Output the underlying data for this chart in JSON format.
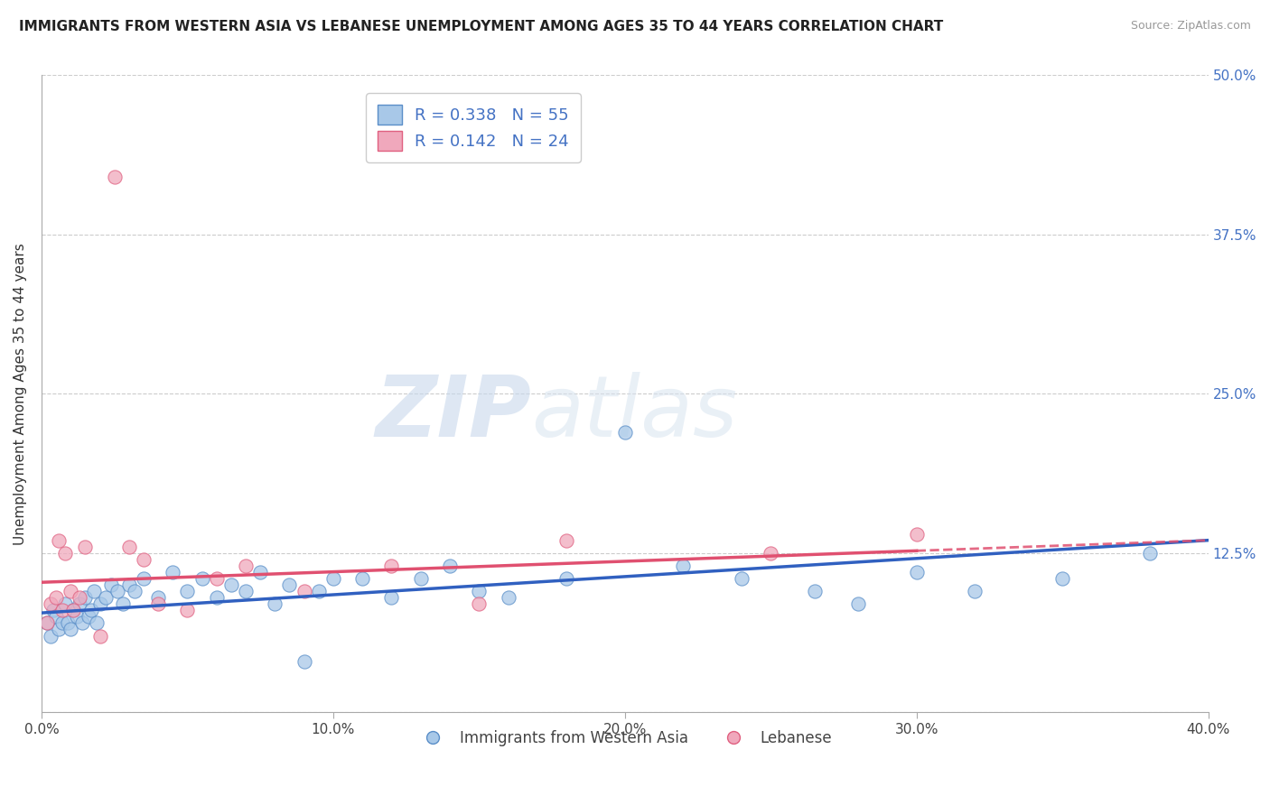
{
  "title": "IMMIGRANTS FROM WESTERN ASIA VS LEBANESE UNEMPLOYMENT AMONG AGES 35 TO 44 YEARS CORRELATION CHART",
  "source": "Source: ZipAtlas.com",
  "xlabel_vals": [
    0.0,
    10.0,
    20.0,
    30.0,
    40.0
  ],
  "ylabel_vals": [
    0.0,
    12.5,
    25.0,
    37.5,
    50.0
  ],
  "ylabel_right_vals": [
    12.5,
    25.0,
    37.5,
    50.0
  ],
  "xlim": [
    0.0,
    40.0
  ],
  "ylim": [
    0.0,
    50.0
  ],
  "ylabel": "Unemployment Among Ages 35 to 44 years",
  "blue_label": "Immigrants from Western Asia",
  "pink_label": "Lebanese",
  "blue_R": 0.338,
  "blue_N": 55,
  "pink_R": 0.142,
  "pink_N": 24,
  "blue_color": "#A8C8E8",
  "pink_color": "#F0A8BC",
  "blue_edge": "#5A8EC8",
  "pink_edge": "#E06080",
  "trend_blue": "#3060C0",
  "trend_pink": "#E05070",
  "watermark_zip": "ZIP",
  "watermark_atlas": "atlas",
  "blue_scatter_x": [
    0.2,
    0.3,
    0.4,
    0.5,
    0.6,
    0.7,
    0.8,
    0.9,
    1.0,
    1.1,
    1.2,
    1.3,
    1.4,
    1.5,
    1.6,
    1.7,
    1.8,
    1.9,
    2.0,
    2.2,
    2.4,
    2.6,
    2.8,
    3.0,
    3.2,
    3.5,
    4.0,
    4.5,
    5.0,
    5.5,
    6.0,
    6.5,
    7.0,
    7.5,
    8.0,
    8.5,
    9.0,
    9.5,
    10.0,
    11.0,
    12.0,
    13.0,
    14.0,
    15.0,
    16.0,
    18.0,
    20.0,
    22.0,
    24.0,
    26.5,
    28.0,
    30.0,
    32.0,
    35.0,
    38.0
  ],
  "blue_scatter_y": [
    7.0,
    6.0,
    8.0,
    7.5,
    6.5,
    7.0,
    8.5,
    7.0,
    6.5,
    8.0,
    7.5,
    8.5,
    7.0,
    9.0,
    7.5,
    8.0,
    9.5,
    7.0,
    8.5,
    9.0,
    10.0,
    9.5,
    8.5,
    10.0,
    9.5,
    10.5,
    9.0,
    11.0,
    9.5,
    10.5,
    9.0,
    10.0,
    9.5,
    11.0,
    8.5,
    10.0,
    4.0,
    9.5,
    10.5,
    10.5,
    9.0,
    10.5,
    11.5,
    9.5,
    9.0,
    10.5,
    22.0,
    11.5,
    10.5,
    9.5,
    8.5,
    11.0,
    9.5,
    10.5,
    12.5
  ],
  "pink_scatter_x": [
    0.2,
    0.3,
    0.5,
    0.6,
    0.7,
    0.8,
    1.0,
    1.1,
    1.3,
    1.5,
    2.0,
    2.5,
    3.0,
    3.5,
    4.0,
    5.0,
    6.0,
    7.0,
    9.0,
    12.0,
    15.0,
    18.0,
    25.0,
    30.0
  ],
  "pink_scatter_y": [
    7.0,
    8.5,
    9.0,
    13.5,
    8.0,
    12.5,
    9.5,
    8.0,
    9.0,
    13.0,
    6.0,
    42.0,
    13.0,
    12.0,
    8.5,
    8.0,
    10.5,
    11.5,
    9.5,
    11.5,
    8.5,
    13.5,
    12.5,
    14.0
  ],
  "blue_trend_x0": 0.0,
  "blue_trend_y0": 7.8,
  "blue_trend_x1": 40.0,
  "blue_trend_y1": 13.5,
  "pink_trend_x0": 0.0,
  "pink_trend_y0": 10.2,
  "pink_trend_x1": 40.0,
  "pink_trend_y1": 13.5,
  "pink_solid_end_x": 30.0
}
